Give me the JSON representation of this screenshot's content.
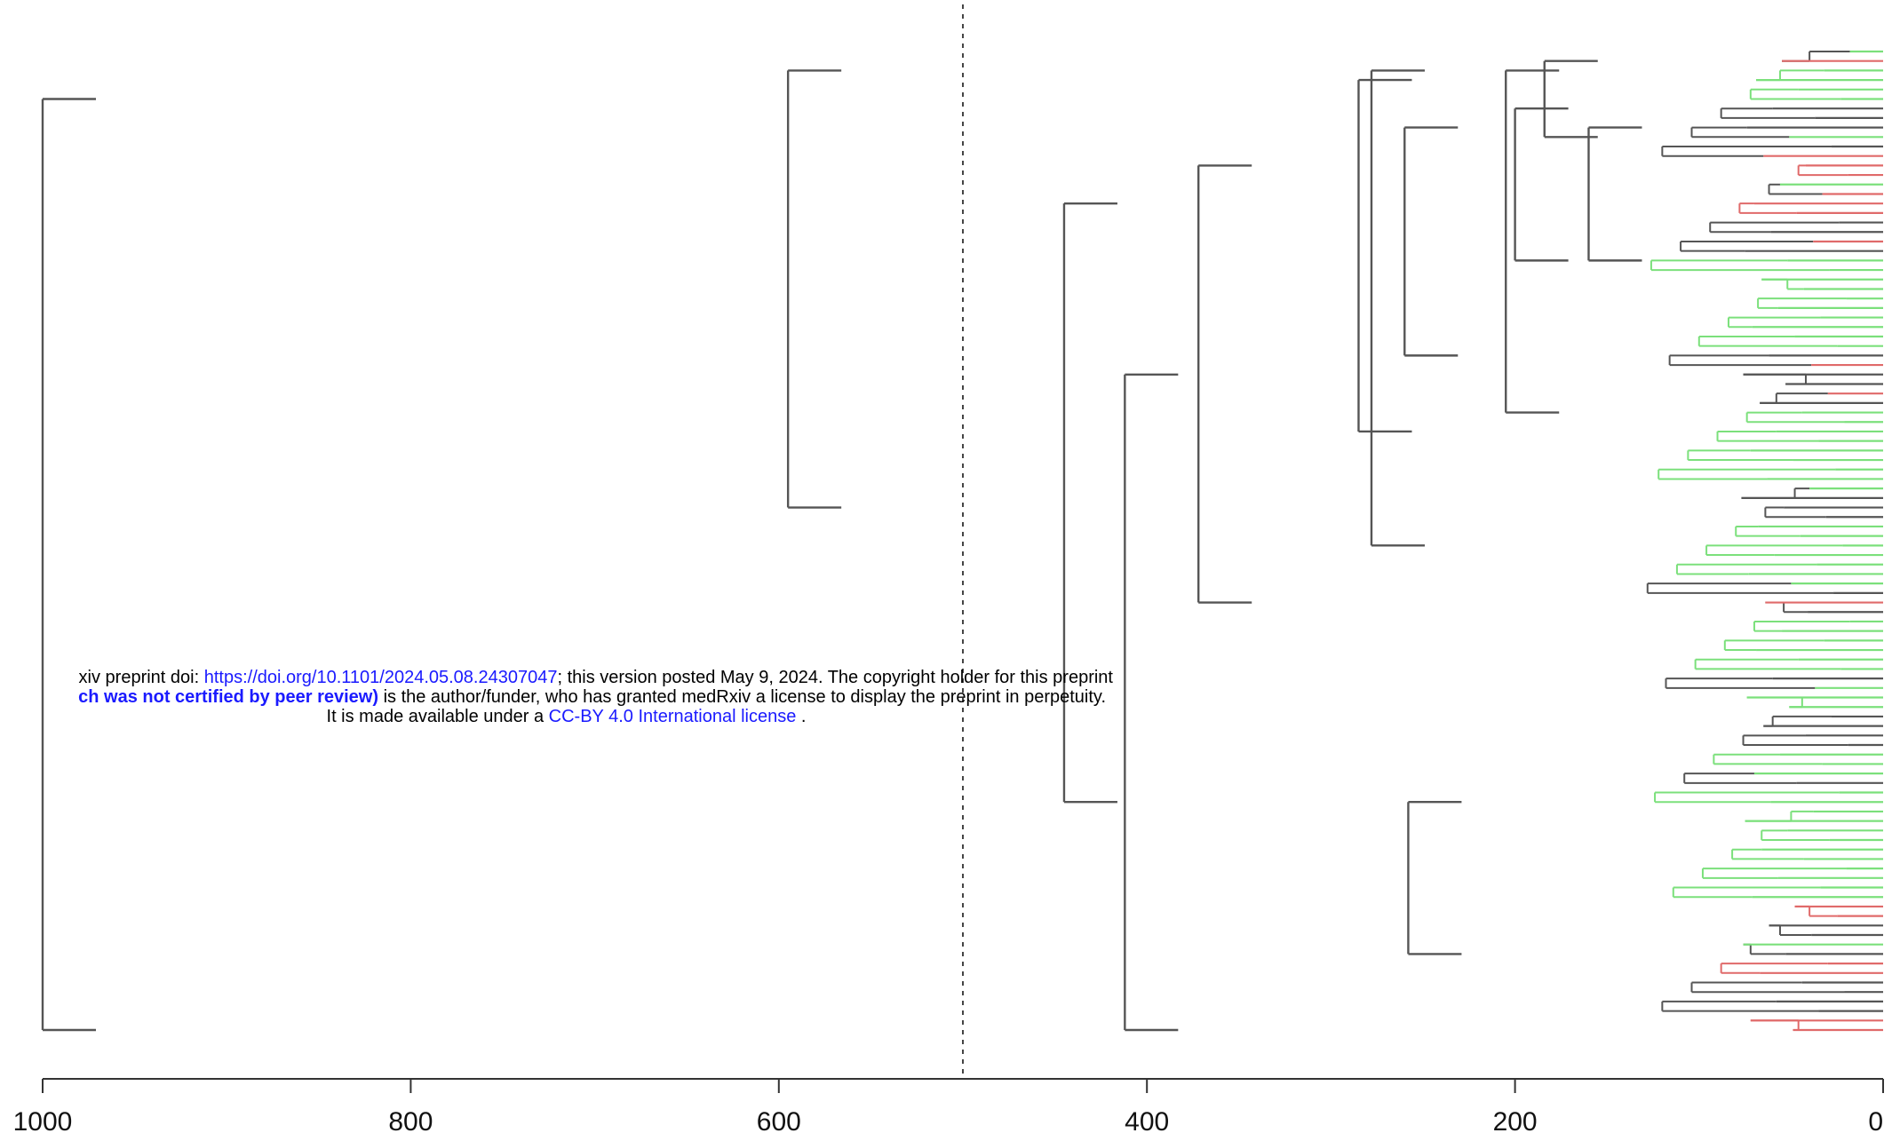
{
  "colors": {
    "branch": "#555555",
    "green": "#7be07b",
    "red": "#e06a6a",
    "cutoff": "#444444"
  },
  "notice": {
    "line1_prefix": "xiv preprint doi: ",
    "line1_link": "https://doi.org/10.1101/2024.05.08.24307047",
    "line1_suffix": "; this version posted May 9, 2024. The copyright holder for this preprint",
    "line2_bold": "ch was not certified by peer review)",
    "line2_suffix": " is the author/funder, who has granted medRxiv a license to display the preprint in perpetuity.",
    "line3_prefix": "It is made available under a ",
    "line3_link": "CC-BY 4.0 International license",
    "line3_suffix": " ."
  },
  "chart_data": {
    "type": "dendrogram",
    "orientation": "horizontal",
    "xlim": [
      1000,
      0
    ],
    "x_ticks": [
      1000,
      800,
      600,
      400,
      200,
      0
    ],
    "tick_labels": [
      "1000",
      "800",
      "600",
      "400",
      "200",
      "0"
    ],
    "cutoff_height": 500,
    "leaf_count": 104,
    "leaf_colors": [
      "green",
      "red",
      "green",
      "green",
      "green",
      "green",
      "black",
      "black",
      "black",
      "green",
      "black",
      "red",
      "red",
      "red",
      "green",
      "red",
      "red",
      "red",
      "black",
      "black",
      "red",
      "black",
      "green",
      "green",
      "green",
      "green",
      "green",
      "green",
      "green",
      "green",
      "green",
      "green",
      "black",
      "red",
      "black",
      "black",
      "red",
      "black",
      "green",
      "green",
      "green",
      "green",
      "green",
      "green",
      "green",
      "green",
      "green",
      "black",
      "black",
      "black",
      "green",
      "green",
      "green",
      "green",
      "green",
      "green",
      "green",
      "black",
      "red",
      "black",
      "green",
      "green",
      "green",
      "green",
      "green",
      "green",
      "black",
      "green",
      "green",
      "green",
      "black",
      "black",
      "black",
      "black",
      "green",
      "green",
      "green",
      "black",
      "green",
      "green",
      "green",
      "green",
      "green",
      "green",
      "green",
      "green",
      "green",
      "green",
      "green",
      "green",
      "red",
      "red",
      "black",
      "black",
      "green",
      "black",
      "red",
      "red",
      "black",
      "black",
      "black",
      "black",
      "red",
      "red"
    ],
    "merges": [
      {
        "height": 1000,
        "top_leaf": 5,
        "bottom_leaf": 103
      },
      {
        "height": 595,
        "top_leaf": 2,
        "bottom_leaf": 48
      },
      {
        "height": 412,
        "top_leaf": 34,
        "bottom_leaf": 103
      },
      {
        "height": 278,
        "top_leaf": 2,
        "bottom_leaf": 52
      },
      {
        "height": 445,
        "top_leaf": 16,
        "bottom_leaf": 79
      },
      {
        "height": 205,
        "top_leaf": 2,
        "bottom_leaf": 38
      },
      {
        "height": 285,
        "top_leaf": 3,
        "bottom_leaf": 40
      },
      {
        "height": 258,
        "top_leaf": 79,
        "bottom_leaf": 95
      },
      {
        "height": 372,
        "top_leaf": 12,
        "bottom_leaf": 58
      },
      {
        "height": 260,
        "top_leaf": 8,
        "bottom_leaf": 32
      },
      {
        "height": 200,
        "top_leaf": 6,
        "bottom_leaf": 22
      },
      {
        "height": 184,
        "top_leaf": 1,
        "bottom_leaf": 9
      },
      {
        "height": 160,
        "top_leaf": 8,
        "bottom_leaf": 22
      }
    ]
  }
}
